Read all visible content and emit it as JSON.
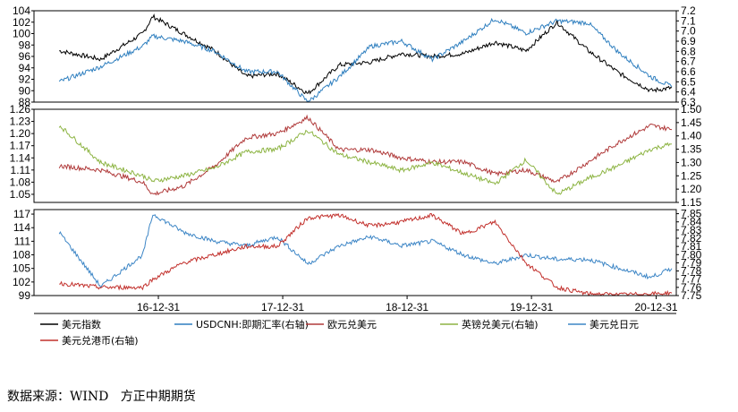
{
  "source_text": "数据来源：WIND   方正中期期货",
  "colors": {
    "usd_index": "#000000",
    "usdcnh": "#2f7fbf",
    "eurusd": "#b03a3a",
    "gbpusd": "#8db443",
    "usdjpy": "#3d86c6",
    "usdhkd": "#c2302c",
    "axis": "#000000",
    "grid": "#c8c8c8"
  },
  "chart_data": [
    {
      "type": "line",
      "panel": "top",
      "left_ticks": [
        "104",
        "102",
        "100",
        "98",
        "96",
        "94",
        "92",
        "90",
        "88"
      ],
      "right_ticks": [
        "7.2",
        "7.1",
        "7.0",
        "6.9",
        "6.8",
        "6.7",
        "6.6",
        "6.5",
        "6.4",
        "6.3"
      ],
      "ylim_left": [
        88,
        104
      ],
      "ylim_right": [
        6.3,
        7.2
      ],
      "x": [
        "2016-03",
        "2016-07",
        "2016-11",
        "2016-12",
        "2017-03",
        "2017-06",
        "2017-09",
        "2017-12",
        "2018-03",
        "2018-06",
        "2018-09",
        "2018-12",
        "2019-03",
        "2019-06",
        "2019-09",
        "2019-12",
        "2020-03",
        "2020-06",
        "2020-09",
        "2020-12",
        "2021-02"
      ],
      "series": [
        {
          "name": "美元指数",
          "axis": "left",
          "values": [
            97,
            95.5,
            100,
            103,
            100,
            97,
            92.5,
            93,
            89.5,
            94.5,
            95,
            96.5,
            96,
            96.5,
            98.5,
            97,
            102,
            97,
            93,
            90,
            90.5
          ]
        },
        {
          "name": "USDCNH:即期汇率(右轴)",
          "axis": "right",
          "values": [
            6.5,
            6.65,
            6.85,
            6.95,
            6.9,
            6.8,
            6.6,
            6.6,
            6.3,
            6.55,
            6.85,
            6.9,
            6.72,
            6.9,
            7.12,
            6.98,
            7.1,
            7.08,
            6.78,
            6.55,
            6.45
          ]
        }
      ]
    },
    {
      "type": "line",
      "panel": "middle",
      "left_ticks": [
        "1.26",
        "1.23",
        "1.20",
        "1.17",
        "1.14",
        "1.11",
        "1.08",
        "1.05"
      ],
      "right_ticks": [
        "1.50",
        "1.45",
        "1.40",
        "1.35",
        "1.30",
        "1.25",
        "1.20",
        "1.15"
      ],
      "ylim_left": [
        1.03,
        1.26
      ],
      "ylim_right": [
        1.15,
        1.5
      ],
      "x": [
        "2016-03",
        "2016-07",
        "2016-11",
        "2016-12",
        "2017-03",
        "2017-06",
        "2017-09",
        "2017-12",
        "2018-03",
        "2018-06",
        "2018-09",
        "2018-12",
        "2019-03",
        "2019-06",
        "2019-09",
        "2019-12",
        "2020-03",
        "2020-06",
        "2020-09",
        "2020-12",
        "2021-02"
      ],
      "series": [
        {
          "name": "欧元兑美元",
          "axis": "left",
          "values": [
            1.12,
            1.11,
            1.08,
            1.05,
            1.07,
            1.12,
            1.19,
            1.2,
            1.24,
            1.16,
            1.16,
            1.14,
            1.13,
            1.13,
            1.1,
            1.11,
            1.08,
            1.13,
            1.18,
            1.22,
            1.21
          ]
        },
        {
          "name": "英镑兑美元(右轴)",
          "axis": "right",
          "values": [
            1.44,
            1.3,
            1.25,
            1.23,
            1.25,
            1.28,
            1.34,
            1.35,
            1.42,
            1.33,
            1.3,
            1.27,
            1.3,
            1.26,
            1.22,
            1.31,
            1.18,
            1.24,
            1.29,
            1.35,
            1.37
          ]
        }
      ]
    },
    {
      "type": "line",
      "panel": "bottom",
      "left_ticks": [
        "117",
        "114",
        "111",
        "108",
        "105",
        "102",
        "99"
      ],
      "right_ticks": [
        "7.85",
        "7.84",
        "7.83",
        "7.82",
        "7.81",
        "7.80",
        "7.79",
        "7.78",
        "7.77",
        "7.76",
        "7.75"
      ],
      "ylim_left": [
        99,
        118
      ],
      "ylim_right": [
        7.75,
        7.855
      ],
      "x": [
        "2016-03",
        "2016-07",
        "2016-11",
        "2016-12",
        "2017-03",
        "2017-06",
        "2017-09",
        "2017-12",
        "2018-03",
        "2018-06",
        "2018-09",
        "2018-12",
        "2019-03",
        "2019-06",
        "2019-09",
        "2019-12",
        "2020-03",
        "2020-06",
        "2020-09",
        "2020-12",
        "2021-02"
      ],
      "series": [
        {
          "name": "美元兑日元",
          "axis": "left",
          "values": [
            113,
            101,
            108,
            117,
            113,
            111,
            110,
            112,
            106,
            110,
            112,
            110,
            111,
            108,
            106,
            108,
            107,
            107,
            105,
            103,
            105
          ]
        },
        {
          "name": "美元兑港币(右轴)",
          "axis": "right",
          "values": [
            7.765,
            7.76,
            7.76,
            7.77,
            7.79,
            7.8,
            7.81,
            7.81,
            7.845,
            7.848,
            7.835,
            7.84,
            7.848,
            7.825,
            7.84,
            7.79,
            7.76,
            7.752,
            7.751,
            7.752,
            7.753
          ]
        }
      ]
    }
  ],
  "x_ticks": [
    "16-12-31",
    "17-12-31",
    "18-12-31",
    "19-12-31",
    "20-12-31"
  ],
  "x_tick_dates": [
    "2016-12-31",
    "2017-12-31",
    "2018-12-31",
    "2019-12-31",
    "2020-12-31"
  ],
  "x_range": [
    "2016-01-01",
    "2021-02-28"
  ],
  "legend": [
    {
      "label": "美元指数",
      "color_key": "usd_index"
    },
    {
      "label": "USDCNH:即期汇率(右轴)",
      "color_key": "usdcnh"
    },
    {
      "label": "欧元兑美元",
      "color_key": "eurusd"
    },
    {
      "label": "英镑兑美元(右轴)",
      "color_key": "gbpusd"
    },
    {
      "label": "美元兑日元",
      "color_key": "usdjpy"
    },
    {
      "label": "美元兑港币(右轴)",
      "color_key": "usdhkd"
    }
  ]
}
